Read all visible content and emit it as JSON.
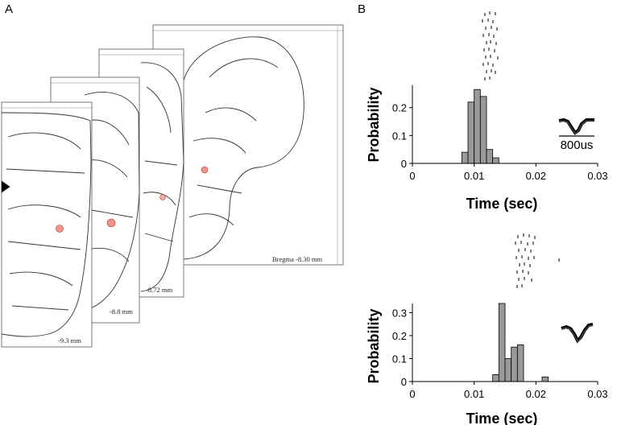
{
  "panel_a": {
    "label": "A",
    "sections": [
      {
        "bregma_label": "Bregma -8.30 mm"
      },
      {
        "bregma_label": "-8.72 mm"
      },
      {
        "bregma_label": "-8.8 mm"
      },
      {
        "bregma_label": "-9.3 mm"
      }
    ]
  },
  "panel_b": {
    "label": "B",
    "waveform_scale_label": "800us"
  },
  "chart_data": [
    {
      "type": "bar",
      "xlabel": "Time (sec)",
      "ylabel": "Probability",
      "xlim": [
        0,
        0.03
      ],
      "ylim": [
        0,
        0.28
      ],
      "x_ticks": [
        "0",
        "0.01",
        "0.02",
        "0.03"
      ],
      "y_ticks": [
        "0",
        "0.1",
        "0.2"
      ],
      "bin_width": 0.001,
      "bins": [
        {
          "x": 0.0085,
          "value": 0.04
        },
        {
          "x": 0.0095,
          "value": 0.22
        },
        {
          "x": 0.0105,
          "value": 0.265
        },
        {
          "x": 0.0115,
          "value": 0.24
        },
        {
          "x": 0.0125,
          "value": 0.05
        },
        {
          "x": 0.0135,
          "value": 0.02
        }
      ],
      "raster": {
        "trials": 18,
        "x_range": [
          0.008,
          0.012
        ]
      }
    },
    {
      "type": "bar",
      "xlabel": "Time (sec)",
      "ylabel": "Probability",
      "xlim": [
        0,
        0.03
      ],
      "ylim": [
        0,
        0.34
      ],
      "x_ticks": [
        "0",
        "0.01",
        "0.02",
        "0.03"
      ],
      "y_ticks": [
        "0",
        "0.1",
        "0.2",
        "0.3"
      ],
      "bin_width": 0.001,
      "bins": [
        {
          "x": 0.0135,
          "value": 0.03
        },
        {
          "x": 0.0145,
          "value": 0.34
        },
        {
          "x": 0.0155,
          "value": 0.1
        },
        {
          "x": 0.0165,
          "value": 0.15
        },
        {
          "x": 0.0175,
          "value": 0.16
        },
        {
          "x": 0.0215,
          "value": 0.02
        }
      ],
      "raster": {
        "trials": 14,
        "x_range": [
          0.0135,
          0.0185
        ]
      }
    }
  ]
}
